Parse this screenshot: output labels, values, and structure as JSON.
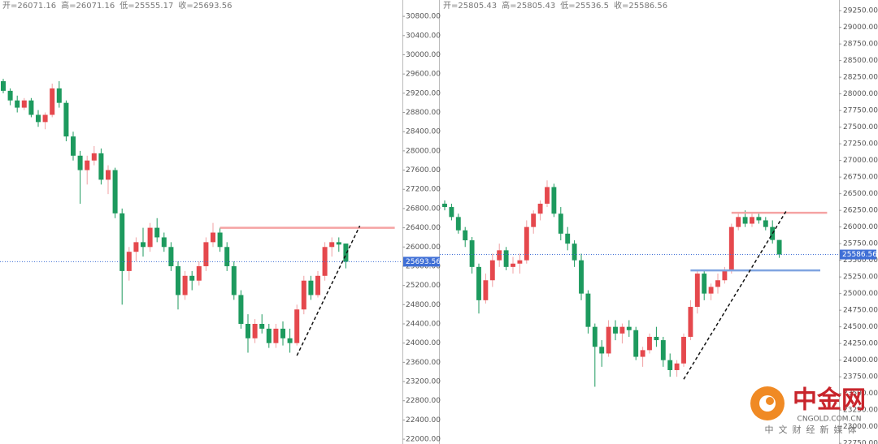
{
  "chart_data": [
    {
      "type": "candlestick",
      "ohlc_labels": [
        "开=",
        "高=",
        "低=",
        "收="
      ],
      "up_color": "#e5484d",
      "down_color": "#1d9a5e",
      "price_line_color": "#3f6fd6",
      "ylim": [
        21900,
        31140
      ],
      "yticks": [
        {
          "value": 30800,
          "label": "30800.00"
        },
        {
          "value": 30400,
          "label": "30400.00"
        },
        {
          "value": 30000,
          "label": "30000.00"
        },
        {
          "value": 29600,
          "label": "29600.00"
        },
        {
          "value": 29200,
          "label": "29200.00"
        },
        {
          "value": 28800,
          "label": "28800.00"
        },
        {
          "value": 28400,
          "label": "28400.00"
        },
        {
          "value": 28000,
          "label": "28000.00"
        },
        {
          "value": 27600,
          "label": "27600.00"
        },
        {
          "value": 27200,
          "label": "27200.00"
        },
        {
          "value": 26800,
          "label": "26800.00"
        },
        {
          "value": 26400,
          "label": "26400.00"
        },
        {
          "value": 26000,
          "label": "26000.00"
        },
        {
          "value": 25600,
          "label": "25600.00"
        },
        {
          "value": 25200,
          "label": "25200.00"
        },
        {
          "value": 24800,
          "label": "24800.00"
        },
        {
          "value": 24400,
          "label": "24400.00"
        },
        {
          "value": 24000,
          "label": "24000.00"
        },
        {
          "value": 23600,
          "label": "23600.00"
        },
        {
          "value": 23200,
          "label": "23200.00"
        },
        {
          "value": 22800,
          "label": "22800.00"
        },
        {
          "value": 22400,
          "label": "22400.00"
        },
        {
          "value": 22000,
          "label": "22000.00"
        }
      ],
      "candles": [
        [
          29450,
          29500,
          29200,
          29250
        ],
        [
          29250,
          29300,
          28950,
          29050
        ],
        [
          29050,
          29150,
          28800,
          28900
        ],
        [
          28900,
          29100,
          28850,
          29050
        ],
        [
          29050,
          29100,
          28700,
          28750
        ],
        [
          28750,
          28850,
          28500,
          28600
        ],
        [
          28600,
          28800,
          28450,
          28750
        ],
        [
          28750,
          29400,
          28700,
          29300
        ],
        [
          29300,
          29450,
          28900,
          29000
        ],
        [
          29000,
          29050,
          28200,
          28300
        ],
        [
          28300,
          28400,
          27800,
          27900
        ],
        [
          27900,
          28000,
          26900,
          27600
        ],
        [
          27600,
          27900,
          27300,
          27800
        ],
        [
          27800,
          28100,
          27700,
          27950
        ],
        [
          27950,
          28050,
          27300,
          27400
        ],
        [
          27400,
          27700,
          27100,
          27600
        ],
        [
          27600,
          27650,
          26600,
          26700
        ],
        [
          26700,
          26800,
          24800,
          25500
        ],
        [
          25500,
          26000,
          25300,
          25900
        ],
        [
          25900,
          26200,
          25700,
          26100
        ],
        [
          26100,
          26400,
          25800,
          26000
        ],
        [
          26000,
          26500,
          25900,
          26400
        ],
        [
          26400,
          26600,
          26100,
          26200
        ],
        [
          26200,
          26300,
          25900,
          26000
        ],
        [
          26000,
          26100,
          25500,
          25600
        ],
        [
          25600,
          25700,
          24700,
          25000
        ],
        [
          25000,
          25500,
          24900,
          25400
        ],
        [
          25400,
          25500,
          25100,
          25300
        ],
        [
          25300,
          25700,
          25200,
          25600
        ],
        [
          25600,
          26200,
          25500,
          26100
        ],
        [
          26100,
          26500,
          26000,
          26300
        ],
        [
          26300,
          26400,
          25900,
          26000
        ],
        [
          26000,
          26100,
          25500,
          25600
        ],
        [
          25600,
          25700,
          24900,
          25000
        ],
        [
          25000,
          25100,
          24300,
          24400
        ],
        [
          24400,
          24600,
          23800,
          24100
        ],
        [
          24100,
          24500,
          24000,
          24400
        ],
        [
          24400,
          24600,
          24200,
          24300
        ],
        [
          24300,
          24400,
          23900,
          24000
        ],
        [
          24000,
          24400,
          23900,
          24300
        ],
        [
          24300,
          24450,
          23950,
          24100
        ],
        [
          24100,
          24300,
          23800,
          24000
        ],
        [
          24000,
          24800,
          23950,
          24700
        ],
        [
          24700,
          25400,
          24600,
          25300
        ],
        [
          25300,
          25400,
          24900,
          25000
        ],
        [
          25000,
          25500,
          24950,
          25400
        ],
        [
          25400,
          26100,
          25300,
          26000
        ],
        [
          26000,
          26200,
          25800,
          26100
        ],
        [
          26100,
          26200,
          25900,
          26050
        ],
        [
          26071.16,
          26071.16,
          25555.17,
          25693.56
        ]
      ],
      "hlines": [
        {
          "value": 26400,
          "from": 31,
          "to": 56,
          "color": "#f5a3a3"
        }
      ],
      "trendlines": [
        {
          "from": [
            42,
            23740
          ],
          "to": [
            51,
            26440
          ]
        }
      ]
    },
    {
      "type": "candlestick",
      "ohlc_labels": [
        "开=",
        "高=",
        "低=",
        "收="
      ],
      "up_color": "#e5484d",
      "down_color": "#1d9a5e",
      "price_line_color": "#3f6fd6",
      "ylim": [
        22740,
        29410
      ],
      "yticks": [
        {
          "value": 29250,
          "label": "29250.00"
        },
        {
          "value": 29000,
          "label": "29000.00"
        },
        {
          "value": 28750,
          "label": "28750.00"
        },
        {
          "value": 28500,
          "label": "28500.00"
        },
        {
          "value": 28250,
          "label": "28250.00"
        },
        {
          "value": 28000,
          "label": "28000.00"
        },
        {
          "value": 27750,
          "label": "27750.00"
        },
        {
          "value": 27500,
          "label": "27500.00"
        },
        {
          "value": 27250,
          "label": "27250.00"
        },
        {
          "value": 27000,
          "label": "27000.00"
        },
        {
          "value": 26750,
          "label": "26750.00"
        },
        {
          "value": 26500,
          "label": "26500.00"
        },
        {
          "value": 26250,
          "label": "26250.00"
        },
        {
          "value": 26000,
          "label": "26000.00"
        },
        {
          "value": 25750,
          "label": "25750.00"
        },
        {
          "value": 25500,
          "label": "25500.00"
        },
        {
          "value": 25250,
          "label": "25250.00"
        },
        {
          "value": 25000,
          "label": "25000.00"
        },
        {
          "value": 24750,
          "label": "24750.00"
        },
        {
          "value": 24500,
          "label": "24500.00"
        },
        {
          "value": 24250,
          "label": "24250.00"
        },
        {
          "value": 24000,
          "label": "24000.00"
        },
        {
          "value": 23750,
          "label": "23750.00"
        },
        {
          "value": 23500,
          "label": "23500.00"
        },
        {
          "value": 23250,
          "label": "23250.00"
        },
        {
          "value": 23000,
          "label": "23000.00"
        },
        {
          "value": 22750,
          "label": "22750.00"
        }
      ],
      "candles": [
        [
          26350,
          26400,
          26250,
          26300
        ],
        [
          26300,
          26350,
          26100,
          26150
        ],
        [
          26150,
          26200,
          25900,
          25950
        ],
        [
          25950,
          26000,
          25700,
          25800
        ],
        [
          25800,
          25850,
          25300,
          25400
        ],
        [
          25400,
          25450,
          24700,
          24900
        ],
        [
          24900,
          25300,
          24850,
          25200
        ],
        [
          25200,
          25600,
          25100,
          25500
        ],
        [
          25500,
          25750,
          25400,
          25650
        ],
        [
          25650,
          25700,
          25350,
          25400
        ],
        [
          25400,
          25550,
          25300,
          25450
        ],
        [
          25450,
          25600,
          25300,
          25500
        ],
        [
          25500,
          26100,
          25450,
          26000
        ],
        [
          26000,
          26250,
          25900,
          26200
        ],
        [
          26200,
          26400,
          26100,
          26350
        ],
        [
          26350,
          26700,
          26300,
          26600
        ],
        [
          26600,
          26650,
          26150,
          26200
        ],
        [
          26200,
          26300,
          25800,
          25900
        ],
        [
          25900,
          26000,
          25650,
          25750
        ],
        [
          25750,
          25800,
          25400,
          25500
        ],
        [
          25500,
          25600,
          24900,
          25000
        ],
        [
          25000,
          25050,
          24400,
          24500
        ],
        [
          24500,
          24550,
          23600,
          24200
        ],
        [
          24200,
          24300,
          23900,
          24100
        ],
        [
          24100,
          24600,
          24050,
          24500
        ],
        [
          24500,
          24600,
          24300,
          24400
        ],
        [
          24400,
          24550,
          24250,
          24500
        ],
        [
          24500,
          24600,
          24350,
          24450
        ],
        [
          24450,
          24500,
          24000,
          24050
        ],
        [
          24050,
          24200,
          23900,
          24150
        ],
        [
          24150,
          24400,
          24100,
          24350
        ],
        [
          24350,
          24500,
          24200,
          24300
        ],
        [
          24300,
          24350,
          23900,
          24000
        ],
        [
          24000,
          24100,
          23750,
          23850
        ],
        [
          23850,
          24000,
          23750,
          23950
        ],
        [
          23950,
          24400,
          23900,
          24350
        ],
        [
          24350,
          24900,
          24300,
          24800
        ],
        [
          24800,
          25350,
          24700,
          25300
        ],
        [
          25300,
          25350,
          24900,
          25000
        ],
        [
          25000,
          25150,
          24900,
          25100
        ],
        [
          25100,
          25300,
          25000,
          25200
        ],
        [
          25200,
          25400,
          25150,
          25350
        ],
        [
          25350,
          26050,
          25300,
          26000
        ],
        [
          26000,
          26200,
          25950,
          26150
        ],
        [
          26150,
          26250,
          26000,
          26050
        ],
        [
          26050,
          26200,
          26000,
          26150
        ],
        [
          26150,
          26200,
          26050,
          26100
        ],
        [
          26100,
          26150,
          25950,
          26000
        ],
        [
          26000,
          26100,
          25750,
          25805
        ],
        [
          25805.43,
          25805.43,
          25536.5,
          25586.56
        ]
      ],
      "hlines": [
        {
          "value": 26213,
          "from": 42,
          "to": 56,
          "color": "#f5a3a3"
        },
        {
          "value": 25348,
          "from": 36,
          "to": 55,
          "color": "#7fa4e0"
        }
      ],
      "trendlines": [
        {
          "from": [
            35,
            23713
          ],
          "to": [
            50,
            26238
          ]
        }
      ]
    }
  ],
  "watermark": {
    "name": "中金网",
    "domain": "CNGOLD.COM.CN",
    "tagline": "中文财经新媒体"
  }
}
